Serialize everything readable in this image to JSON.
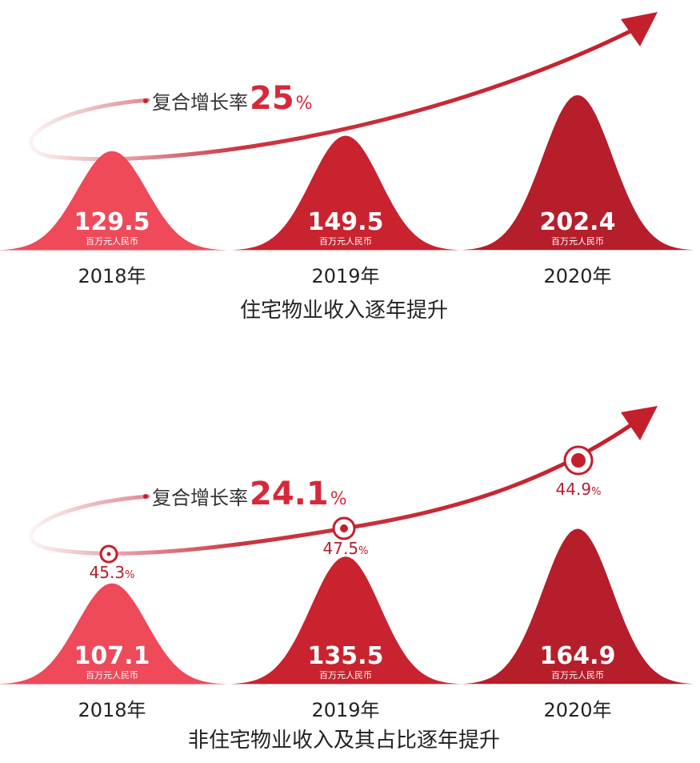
{
  "chart_data": [
    {
      "type": "bar",
      "categories": [
        "2018年",
        "2019年",
        "2020年"
      ],
      "values": [
        129.5,
        149.5,
        202.4
      ],
      "value_labels": [
        "129.5",
        "149.5",
        "202.4"
      ],
      "unit": "百万元人民币",
      "cagr_label": "复合增长率",
      "cagr_value": "25",
      "cagr_pct": "%",
      "caption": "住宅物业收入逐年提升"
    },
    {
      "type": "bar",
      "categories": [
        "2018年",
        "2019年",
        "2020年"
      ],
      "values": [
        107.1,
        135.5,
        164.9
      ],
      "value_labels": [
        "107.1",
        "135.5",
        "164.9"
      ],
      "unit": "百万元人民币",
      "shares": [
        45.3,
        47.5,
        44.9
      ],
      "share_labels": [
        "45.3",
        "47.5",
        "44.9"
      ],
      "share_pct": "%",
      "cagr_label": "复合增长率",
      "cagr_value": "24.1",
      "cagr_pct": "%",
      "caption": "非住宅物业收入及其占比逐年提升"
    }
  ],
  "colors": {
    "light": "#ee4a5a",
    "mid": "#c8232f",
    "dark": "#b51e2a",
    "arrow": "#c41f2c",
    "text": "#222222"
  }
}
